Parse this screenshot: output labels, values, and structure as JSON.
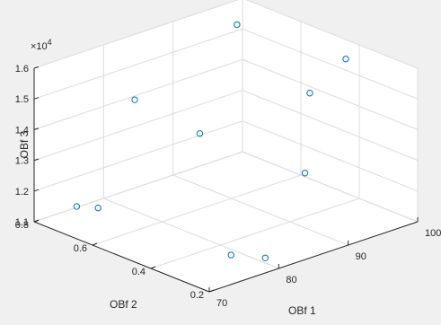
{
  "chart_data": {
    "type": "scatter3d",
    "title": "",
    "xlabel": "OBf 1",
    "ylabel": "OBf 2",
    "zlabel": "OBf 3",
    "xlim": [
      70,
      100
    ],
    "ylim": [
      0.2,
      0.8
    ],
    "zlim": [
      11000,
      16000
    ],
    "xticks": [
      70,
      80,
      90,
      100
    ],
    "yticks": [
      0.2,
      0.4,
      0.6,
      0.8
    ],
    "zticks": [
      11000,
      12000,
      13000,
      14000,
      15000,
      16000
    ],
    "xtick_labels": [
      "70",
      "80",
      "90",
      "100"
    ],
    "ytick_labels": [
      "0.2",
      "0.4",
      "0.6",
      "0.8"
    ],
    "ztick_labels": [
      "1.1",
      "1.2",
      "1.3",
      "1.4",
      "1.5",
      "1.6"
    ],
    "z_exponent_base": "×10",
    "z_exponent_power": "4",
    "grid": true,
    "marker": "circle-open",
    "marker_color": "#0072bd",
    "series": [
      {
        "points": [
          {
            "x": 71.5,
            "y": 0.69,
            "z": 11800
          },
          {
            "x": 72.9,
            "y": 0.65,
            "z": 11800
          },
          {
            "x": 76.5,
            "y": 0.28,
            "z": 11400
          },
          {
            "x": 78.9,
            "y": 0.22,
            "z": 11350
          },
          {
            "x": 76.5,
            "y": 0.61,
            "z": 15200
          },
          {
            "x": 80.4,
            "y": 0.48,
            "z": 14300
          },
          {
            "x": 90.8,
            "y": 0.6,
            "z": 16600
          },
          {
            "x": 89.1,
            "y": 0.31,
            "z": 15600
          },
          {
            "x": 86.3,
            "y": 0.26,
            "z": 13400
          },
          {
            "x": 96.8,
            "y": 0.37,
            "z": 15900
          }
        ]
      }
    ]
  }
}
